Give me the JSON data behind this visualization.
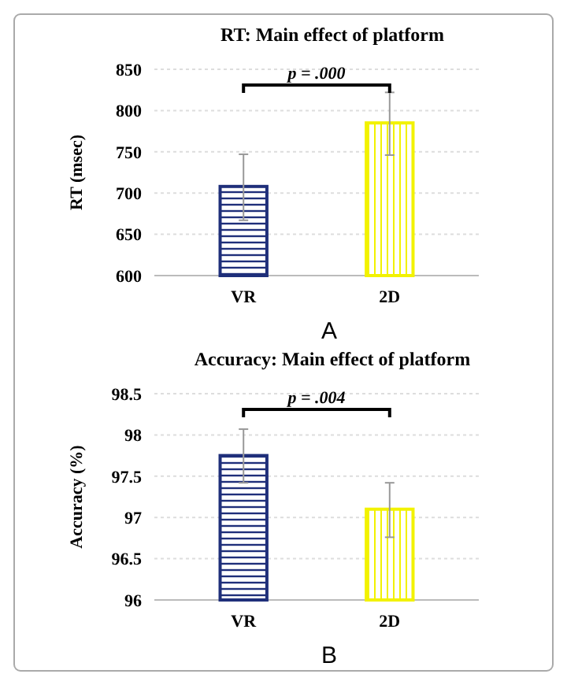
{
  "chart_data": [
    {
      "type": "bar",
      "title": "RT: Main effect of platform",
      "ylabel": "RT (msec)",
      "categories": [
        "VR",
        "2D"
      ],
      "values": [
        708,
        785
      ],
      "colors": [
        "#1f2f7a",
        "#f2f200"
      ],
      "errors": [
        [
          667,
          747
        ],
        [
          746,
          822
        ]
      ],
      "ylim": [
        600,
        850
      ],
      "yticks": [
        600,
        650,
        700,
        750,
        800,
        850
      ],
      "grid": "y",
      "annotations": [
        "p = .000",
        "A"
      ]
    },
    {
      "type": "bar",
      "title": "Accuracy: Main effect of platform",
      "ylabel": "Accuracy (%)",
      "categories": [
        "VR",
        "2D"
      ],
      "values": [
        97.75,
        97.1
      ],
      "colors": [
        "#1f2f7a",
        "#f2f200"
      ],
      "errors": [
        [
          97.42,
          98.07
        ],
        [
          96.76,
          97.42
        ]
      ],
      "ylim": [
        96,
        98.5
      ],
      "yticks": [
        96,
        96.5,
        97,
        97.5,
        98,
        98.5
      ],
      "grid": "y",
      "annotations": [
        "p = .004",
        "B"
      ]
    }
  ]
}
